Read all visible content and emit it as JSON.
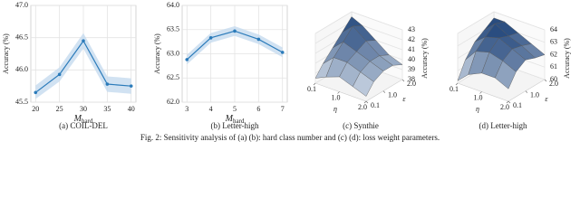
{
  "caption": "Fig. 2: Sensitivity analysis of (a) (b): hard class number and (c) (d): loss weight parameters.",
  "chart_data": [
    {
      "type": "line",
      "caption": "(a) COIL-DEL",
      "xlabel": "M",
      "xlabel_sub": "hard",
      "ylabel": "Accuracy (%)",
      "x": [
        20,
        25,
        30,
        35,
        40
      ],
      "values": [
        45.65,
        45.93,
        46.45,
        45.78,
        45.75
      ],
      "band": {
        "lower": [
          45.55,
          45.82,
          46.33,
          45.66,
          45.63
        ],
        "upper": [
          45.76,
          46.04,
          46.57,
          45.9,
          45.87
        ]
      },
      "color": "#2b7bba",
      "band_color": "#c6dbef",
      "xlim": [
        19,
        41
      ],
      "xticks": [
        20,
        25,
        30,
        35,
        40
      ],
      "ylim": [
        45.5,
        47.0
      ],
      "yticks": [
        45.5,
        {
          "value": 46.0,
          "label": "46.0"
        },
        46.5,
        {
          "value": 47.0,
          "label": "47.0"
        }
      ],
      "grid": true
    },
    {
      "type": "line",
      "caption": "(b) Letter-high",
      "xlabel": "M",
      "xlabel_sub": "hard",
      "ylabel": "Accuracy (%)",
      "x": [
        3,
        4,
        5,
        6,
        7
      ],
      "values": [
        62.88,
        63.33,
        63.47,
        63.3,
        63.03
      ],
      "band": {
        "lower": [
          62.78,
          63.23,
          63.37,
          63.2,
          62.93
        ],
        "upper": [
          62.98,
          63.43,
          63.57,
          63.4,
          63.13
        ]
      },
      "color": "#2b7bba",
      "band_color": "#c6dbef",
      "xlim": [
        2.8,
        7.2
      ],
      "xticks": [
        3,
        4,
        5,
        6,
        7
      ],
      "ylim": [
        62.0,
        64.0
      ],
      "yticks": [
        {
          "value": 62.0,
          "label": "62.0"
        },
        62.5,
        {
          "value": 63.0,
          "label": "63.0"
        },
        63.5,
        {
          "value": 64.0,
          "label": "64.0"
        }
      ],
      "grid": true
    },
    {
      "type": "surface",
      "caption": "(c) Synthie",
      "xlabel": "η",
      "ylabel": "ε",
      "zlabel": "Accuracy (%)",
      "x": [
        0.1,
        0.5,
        1.0,
        1.5,
        2.0
      ],
      "y": [
        0.1,
        0.5,
        1.0,
        1.5,
        2.0
      ],
      "z": [
        [
          38.5,
          39.5,
          40.5,
          41.5,
          42.5
        ],
        [
          39,
          40.5,
          41.5,
          42.5,
          42
        ],
        [
          39.5,
          40.5,
          41,
          41.5,
          41
        ],
        [
          39,
          40,
          40.5,
          40.5,
          40
        ],
        [
          38.5,
          39.5,
          40,
          40,
          39.5
        ]
      ],
      "xlim": [
        0.1,
        2.0
      ],
      "ylim": [
        0.1,
        2.0
      ],
      "xticks": [
        0.1,
        {
          "value": 1.0,
          "label": "1.0"
        },
        {
          "value": 2.0,
          "label": "2.0"
        }
      ],
      "yticks": [
        0.1,
        {
          "value": 1.0,
          "label": "1.0"
        },
        {
          "value": 2.0,
          "label": "2.0"
        }
      ],
      "zlim": [
        38,
        43
      ],
      "zticks": [
        38,
        39,
        40,
        41,
        42,
        43
      ],
      "colormap": [
        "#f7fbff",
        "#08306b"
      ]
    },
    {
      "type": "surface",
      "caption": "(d) Letter-high",
      "xlabel": "η",
      "ylabel": "ε",
      "zlabel": "Accuracy (%)",
      "x": [
        0.1,
        0.5,
        1.0,
        1.5,
        2.0
      ],
      "y": [
        0.1,
        0.5,
        1.0,
        1.5,
        2.0
      ],
      "z": [
        [
          60.2,
          61.5,
          62.5,
          63,
          63.5
        ],
        [
          61,
          62.5,
          63.2,
          63.8,
          63.5
        ],
        [
          61.5,
          62.8,
          63.5,
          63.2,
          63
        ],
        [
          61.5,
          62.5,
          63,
          62.8,
          62.5
        ],
        [
          61,
          62,
          62.5,
          62.2,
          62
        ]
      ],
      "xlim": [
        0.1,
        2.0
      ],
      "ylim": [
        0.1,
        2.0
      ],
      "xticks": [
        0.1,
        {
          "value": 1.0,
          "label": "1.0"
        },
        {
          "value": 2.0,
          "label": "2.0"
        }
      ],
      "yticks": [
        0.1,
        {
          "value": 1.0,
          "label": "1.0"
        },
        {
          "value": 2.0,
          "label": "2.0"
        }
      ],
      "zlim": [
        60,
        64
      ],
      "zticks": [
        60,
        61,
        62,
        63,
        64
      ],
      "colormap": [
        "#f7fbff",
        "#08306b"
      ]
    }
  ]
}
